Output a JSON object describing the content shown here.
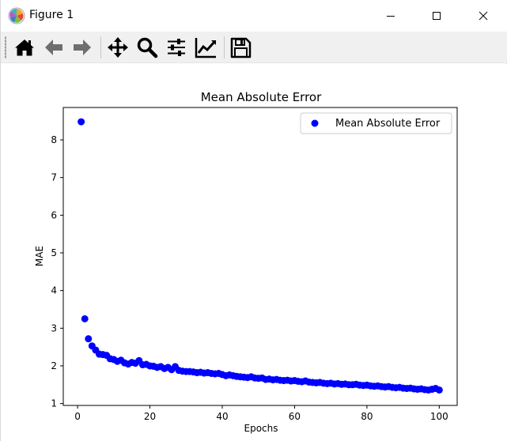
{
  "window": {
    "title": "Figure 1",
    "controls": {
      "minimize": "minimize",
      "maximize": "maximize",
      "close": "close"
    }
  },
  "toolbar": {
    "buttons": [
      {
        "id": "home",
        "icon": "home-icon"
      },
      {
        "id": "back",
        "icon": "arrow-left-icon"
      },
      {
        "id": "forward",
        "icon": "arrow-right-icon"
      },
      {
        "id": "pan",
        "icon": "move-arrows-icon"
      },
      {
        "id": "zoom",
        "icon": "magnifier-icon"
      },
      {
        "id": "subplots",
        "icon": "sliders-icon"
      },
      {
        "id": "customize",
        "icon": "line-chart-icon"
      },
      {
        "id": "save",
        "icon": "floppy-disk-icon"
      }
    ]
  },
  "chart_data": {
    "type": "scatter",
    "title": "Mean Absolute Error",
    "xlabel": "Epochs",
    "ylabel": "MAE",
    "xlim": [
      -3.95,
      104.95
    ],
    "ylim": [
      0.95,
      8.86
    ],
    "xticks": [
      0,
      20,
      40,
      60,
      80,
      100
    ],
    "yticks": [
      1,
      2,
      3,
      4,
      5,
      6,
      7,
      8
    ],
    "grid": false,
    "legend": {
      "position": "top-right",
      "entries": [
        "Mean Absolute Error"
      ]
    },
    "series": [
      {
        "name": "Mean Absolute Error",
        "color": "#0000ff",
        "x": [
          1,
          2,
          3,
          4,
          5,
          6,
          7,
          8,
          9,
          10,
          11,
          12,
          13,
          14,
          15,
          16,
          17,
          18,
          19,
          20,
          21,
          22,
          23,
          24,
          25,
          26,
          27,
          28,
          29,
          30,
          31,
          32,
          33,
          34,
          35,
          36,
          37,
          38,
          39,
          40,
          41,
          42,
          43,
          44,
          45,
          46,
          47,
          48,
          49,
          50,
          51,
          52,
          53,
          54,
          55,
          56,
          57,
          58,
          59,
          60,
          61,
          62,
          63,
          64,
          65,
          66,
          67,
          68,
          69,
          70,
          71,
          72,
          73,
          74,
          75,
          76,
          77,
          78,
          79,
          80,
          81,
          82,
          83,
          84,
          85,
          86,
          87,
          88,
          89,
          90,
          91,
          92,
          93,
          94,
          95,
          96,
          97,
          98,
          99,
          100
        ],
        "y": [
          8.48,
          3.25,
          2.72,
          2.53,
          2.42,
          2.31,
          2.3,
          2.28,
          2.19,
          2.17,
          2.12,
          2.15,
          2.08,
          2.05,
          2.09,
          2.07,
          2.14,
          2.03,
          2.04,
          2.0,
          1.99,
          1.96,
          1.98,
          1.93,
          1.96,
          1.9,
          1.98,
          1.88,
          1.86,
          1.85,
          1.85,
          1.84,
          1.82,
          1.83,
          1.81,
          1.82,
          1.8,
          1.79,
          1.8,
          1.77,
          1.74,
          1.76,
          1.74,
          1.72,
          1.71,
          1.7,
          1.69,
          1.71,
          1.68,
          1.67,
          1.68,
          1.64,
          1.65,
          1.63,
          1.64,
          1.62,
          1.61,
          1.62,
          1.6,
          1.61,
          1.59,
          1.58,
          1.6,
          1.57,
          1.56,
          1.55,
          1.56,
          1.54,
          1.53,
          1.54,
          1.52,
          1.53,
          1.51,
          1.52,
          1.5,
          1.5,
          1.51,
          1.49,
          1.48,
          1.49,
          1.47,
          1.46,
          1.47,
          1.45,
          1.44,
          1.45,
          1.43,
          1.42,
          1.43,
          1.41,
          1.4,
          1.41,
          1.39,
          1.38,
          1.39,
          1.37,
          1.36,
          1.38,
          1.4,
          1.36
        ]
      }
    ]
  }
}
